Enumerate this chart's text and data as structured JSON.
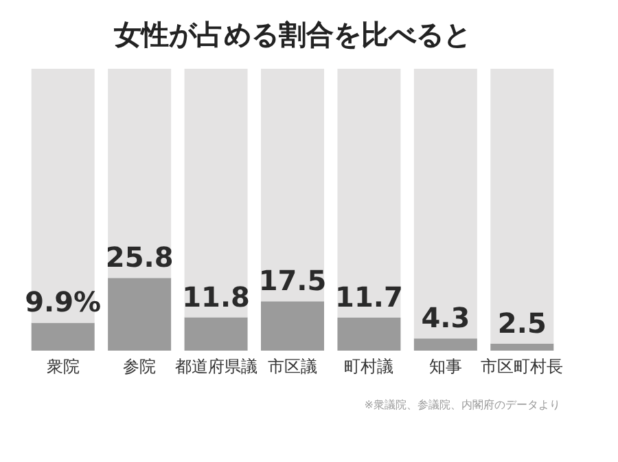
{
  "chart_data": {
    "type": "bar",
    "title": "女性が占める割合を比べると",
    "categories": [
      "衆院",
      "参院",
      "都道府県議",
      "市区議",
      "町村議",
      "知事",
      "市区町村長"
    ],
    "stacked": true,
    "ylim": [
      0,
      100
    ],
    "tick_labels": "x",
    "grid": false,
    "series": [
      {
        "color": "#9b9b9b",
        "values": [
          9.9,
          25.8,
          11.8,
          17.5,
          11.7,
          4.3,
          2.5
        ],
        "value_labels": [
          "9.9%",
          "25.8",
          "11.8",
          "17.5",
          "11.7",
          "4.3",
          "2.5"
        ]
      },
      {
        "color": "#e4e3e3",
        "values": [
          90.1,
          74.2,
          88.2,
          82.5,
          88.3,
          95.7,
          97.5
        ]
      }
    ],
    "annotations": [
      "※衆議院、参議院、内閣府のデータより"
    ]
  }
}
